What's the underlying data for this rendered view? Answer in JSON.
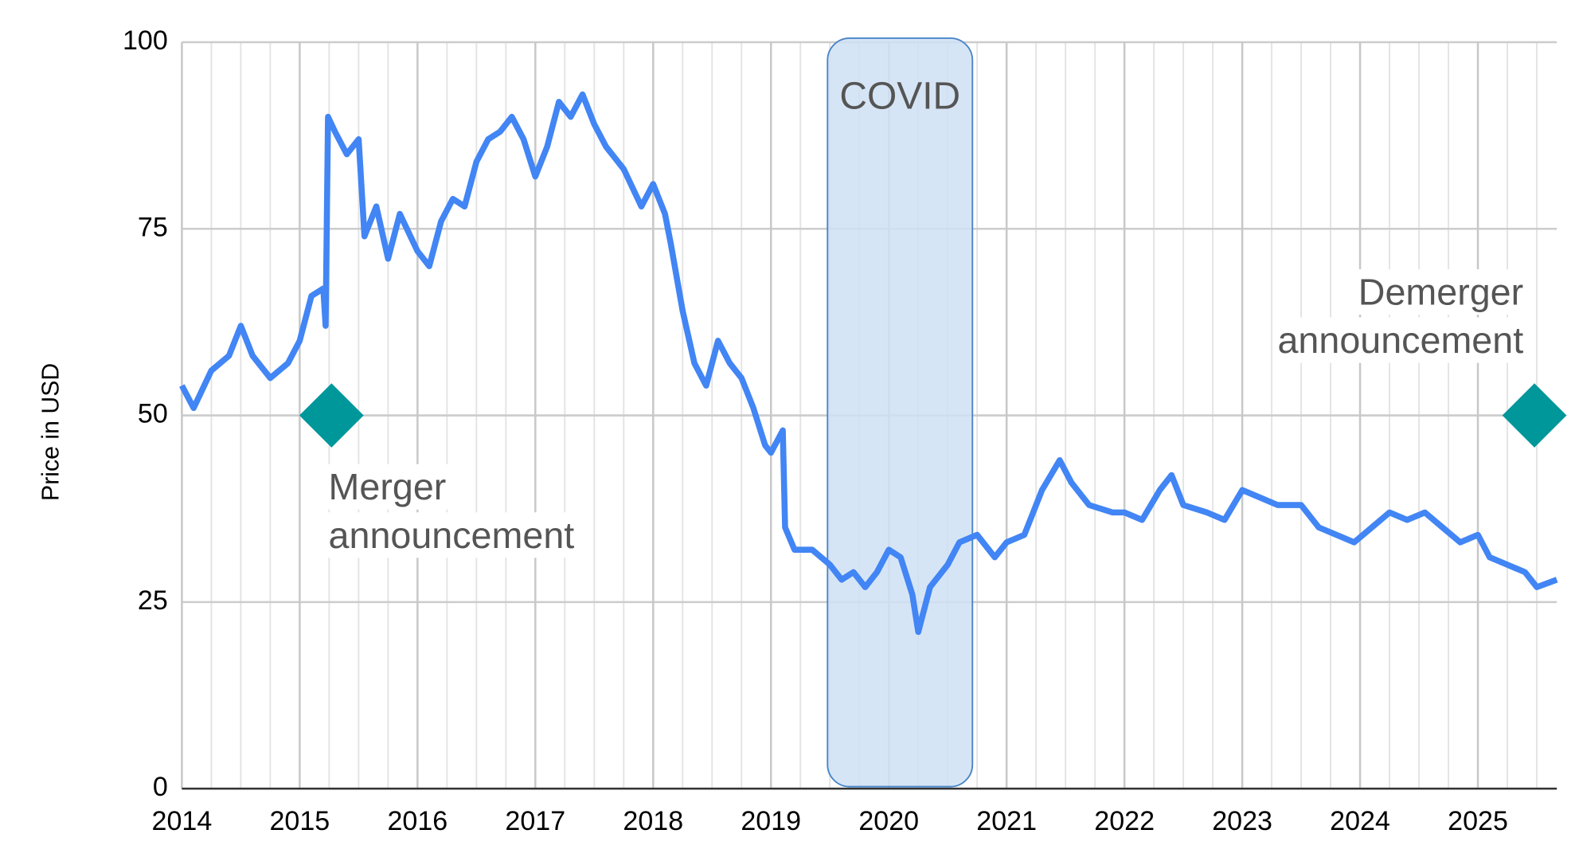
{
  "chart_data": {
    "type": "line",
    "y_label": "Price in USD",
    "x": [
      2014.0,
      2014.1,
      2014.25,
      2014.4,
      2014.5,
      2014.6,
      2014.75,
      2014.9,
      2015.0,
      2015.1,
      2015.2,
      2015.22,
      2015.24,
      2015.3,
      2015.4,
      2015.5,
      2015.55,
      2015.65,
      2015.75,
      2015.85,
      2016.0,
      2016.1,
      2016.2,
      2016.3,
      2016.4,
      2016.5,
      2016.6,
      2016.7,
      2016.8,
      2016.9,
      2017.0,
      2017.1,
      2017.2,
      2017.3,
      2017.4,
      2017.5,
      2017.6,
      2017.75,
      2017.9,
      2018.0,
      2018.1,
      2018.15,
      2018.25,
      2018.35,
      2018.45,
      2018.55,
      2018.65,
      2018.75,
      2018.85,
      2018.95,
      2019.0,
      2019.1,
      2019.12,
      2019.2,
      2019.35,
      2019.5,
      2019.6,
      2019.7,
      2019.8,
      2019.9,
      2020.0,
      2020.1,
      2020.2,
      2020.25,
      2020.35,
      2020.5,
      2020.6,
      2020.75,
      2020.9,
      2021.0,
      2021.15,
      2021.3,
      2021.45,
      2021.55,
      2021.7,
      2021.9,
      2022.0,
      2022.15,
      2022.3,
      2022.4,
      2022.5,
      2022.7,
      2022.85,
      2023.0,
      2023.15,
      2023.3,
      2023.5,
      2023.65,
      2023.8,
      2023.95,
      2024.1,
      2024.25,
      2024.4,
      2024.55,
      2024.7,
      2024.85,
      2025.0,
      2025.1,
      2025.25,
      2025.4,
      2025.5,
      2025.67
    ],
    "series": [
      {
        "color": "#4285f4",
        "values": [
          54,
          51,
          56,
          58,
          62,
          58,
          55,
          57,
          60,
          66,
          67,
          62,
          90,
          88,
          85,
          87,
          74,
          78,
          71,
          77,
          72,
          70,
          76,
          79,
          78,
          84,
          87,
          88,
          90,
          87,
          82,
          86,
          92,
          90,
          93,
          89,
          86,
          83,
          78,
          81,
          77,
          73,
          64,
          57,
          54,
          60,
          57,
          55,
          51,
          46,
          45,
          48,
          35,
          32,
          32,
          30,
          28,
          29,
          27,
          29,
          32,
          31,
          26,
          21,
          27,
          30,
          33,
          34,
          31,
          33,
          34,
          40,
          44,
          41,
          38,
          37,
          37,
          36,
          40,
          42,
          38,
          37,
          36,
          40,
          39,
          38,
          38,
          35,
          34,
          33,
          35,
          37,
          36,
          37,
          35,
          33,
          34,
          31,
          30,
          29,
          27,
          28
        ]
      }
    ],
    "xlim": [
      2014,
      2025.67
    ],
    "ylim": [
      0,
      100
    ],
    "xticks": [
      2014,
      2015,
      2016,
      2017,
      2018,
      2019,
      2020,
      2021,
      2022,
      2023,
      2024,
      2025
    ],
    "yticks": [
      0,
      25,
      50,
      75,
      100
    ],
    "grid": true,
    "annotations": [
      {
        "type": "band",
        "text": "COVID",
        "x_start": 2019.48,
        "x_end": 2020.71,
        "color": "#cfe0f4",
        "edge_color": "#4a86c8"
      },
      {
        "type": "marker",
        "text": [
          "Merger",
          "announcement"
        ],
        "x": 2015.27,
        "y": 50,
        "color": "#00979b",
        "label_position": "below"
      },
      {
        "type": "marker",
        "text": [
          "Demerger",
          "announcement"
        ],
        "x": 2025.48,
        "y": 50,
        "color": "#00979b",
        "label_position": "above"
      }
    ]
  }
}
